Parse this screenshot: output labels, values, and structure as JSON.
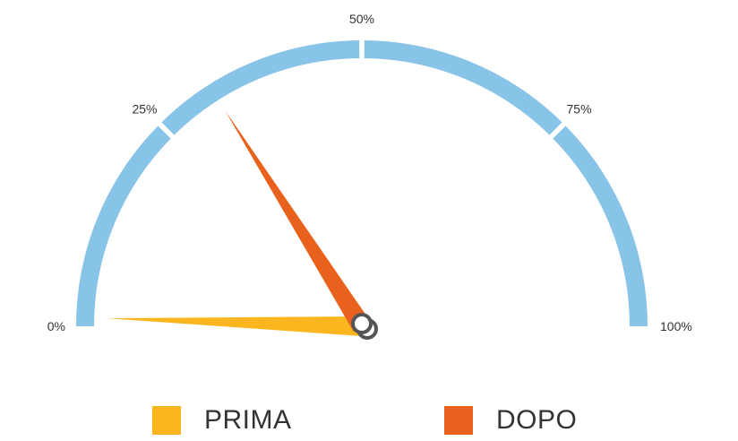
{
  "chart_data": {
    "type": "gauge",
    "range": [
      0,
      100
    ],
    "ticks": [
      {
        "value": 0,
        "label": "0%"
      },
      {
        "value": 25,
        "label": "25%"
      },
      {
        "value": 50,
        "label": "50%"
      },
      {
        "value": 75,
        "label": "75%"
      },
      {
        "value": 100,
        "label": "100%"
      }
    ],
    "series": [
      {
        "name": "PRIMA",
        "value": 1,
        "color": "#fbb51f"
      },
      {
        "name": "DOPO",
        "value": 32,
        "color": "#e8621d"
      }
    ],
    "arc_color": "#88c3e8",
    "legend_position": "bottom"
  }
}
